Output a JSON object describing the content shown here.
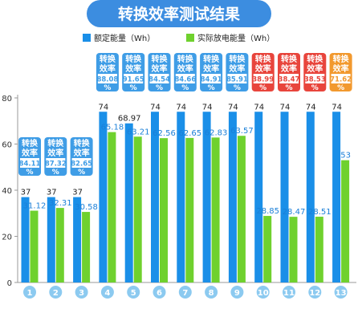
{
  "chart_data": {
    "type": "bar",
    "title": "转换效率测试结果",
    "categories": [
      "1",
      "2",
      "3",
      "4",
      "5",
      "6",
      "7",
      "8",
      "9",
      "10",
      "11",
      "12",
      "13"
    ],
    "series": [
      {
        "name": "额定能量（Wh）",
        "values": [
          37,
          37,
          37,
          74,
          68.97,
          74,
          74,
          74,
          74,
          74,
          74,
          74,
          74
        ]
      },
      {
        "name": "实际放电能量（Wh）",
        "values": [
          31.12,
          32.31,
          30.58,
          65.18,
          63.21,
          62.56,
          62.65,
          62.83,
          63.57,
          28.85,
          28.47,
          28.51,
          53
        ]
      }
    ],
    "efficiency_label": "转换效率",
    "efficiencies": [
      "84.11%",
      "87.32%",
      "82.65%",
      "88.08%",
      "91.65%",
      "84.54%",
      "84.66%",
      "84.91%",
      "85.91%",
      "38.99%",
      "38.47%",
      "38.53%",
      "71.62%"
    ],
    "y_ticks": [
      0,
      20,
      40,
      60,
      80
    ],
    "ylim": [
      0,
      80
    ],
    "legend_position": "top"
  },
  "colors": {
    "title_bar": "#3c8de0",
    "rated": "#1a8fe8",
    "actual": "#6fd12e",
    "badge_blue": "#3f9de6",
    "badge_red": "#e8453c",
    "badge_orange": "#f2992e",
    "badge_text": "#ffffff",
    "value_blue": "#1a7fd8",
    "value_text": "#222222",
    "circle": "#8ccaf0"
  }
}
